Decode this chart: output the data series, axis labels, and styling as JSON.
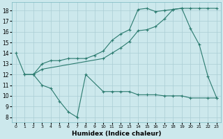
{
  "color": "#2a7a6e",
  "bg_color": "#cce8ec",
  "grid_color": "#aacdd4",
  "xlabel": "Humidex (Indice chaleur)",
  "xlim": [
    -0.5,
    23.5
  ],
  "ylim": [
    7.5,
    18.8
  ],
  "yticks": [
    8,
    9,
    10,
    11,
    12,
    13,
    14,
    15,
    16,
    17,
    18
  ],
  "xticks": [
    0,
    1,
    2,
    3,
    4,
    5,
    6,
    7,
    8,
    9,
    10,
    11,
    12,
    13,
    14,
    15,
    16,
    17,
    18,
    19,
    20,
    21,
    22,
    23
  ],
  "series": [
    {
      "x": [
        0,
        1,
        2,
        3,
        4,
        5,
        6,
        7,
        8,
        10,
        11,
        12,
        13,
        14,
        15,
        16,
        17,
        18,
        19,
        20,
        22,
        23
      ],
      "y": [
        14,
        12,
        12,
        11,
        10.7,
        9.5,
        8.5,
        8.0,
        12.0,
        10.4,
        10.4,
        10.4,
        10.4,
        10.1,
        10.1,
        10.1,
        10.0,
        10.0,
        10.0,
        9.8,
        9.8,
        9.8
      ]
    },
    {
      "x": [
        1,
        2,
        3,
        10,
        11,
        12,
        13,
        14,
        15,
        16,
        17,
        18,
        19,
        20,
        21,
        22,
        23
      ],
      "y": [
        12,
        12,
        12.5,
        13.5,
        14.0,
        14.5,
        15.1,
        16.1,
        16.2,
        16.5,
        17.2,
        18.1,
        18.2,
        16.3,
        14.8,
        11.8,
        9.8
      ]
    },
    {
      "x": [
        2,
        3,
        4,
        5,
        6,
        7,
        8,
        9,
        10,
        11,
        12,
        13,
        14,
        15,
        16,
        17,
        18,
        19,
        20,
        21,
        22,
        23
      ],
      "y": [
        12,
        13,
        13.3,
        13.3,
        13.5,
        13.5,
        13.5,
        13.8,
        14.2,
        15.2,
        15.8,
        16.2,
        18.1,
        18.2,
        17.9,
        18.0,
        18.1,
        18.2,
        18.2,
        18.2,
        18.2,
        18.2
      ]
    }
  ]
}
